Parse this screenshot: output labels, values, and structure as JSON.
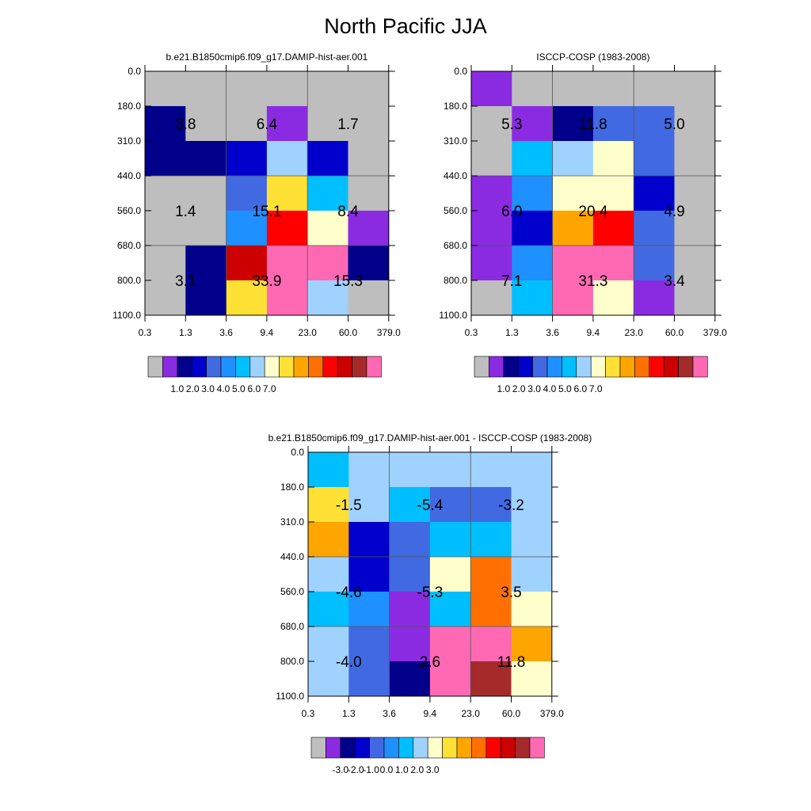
{
  "title": "North Pacific JJA",
  "chart_data": [
    {
      "type": "heatmap",
      "title": "b.e21.B1850cmip6.f09_g17.DAMIP-hist-aer.001",
      "x_tick_labels": [
        "0.3",
        "1.3",
        "3.6",
        "9.4",
        "23.0",
        "60.0",
        "379.0"
      ],
      "y_tick_labels": [
        "0.0",
        "180.0",
        "310.0",
        "440.0",
        "560.0",
        "680.0",
        "800.0",
        "1100.0"
      ],
      "cells_color_index": [
        [
          0,
          0,
          0,
          0,
          0,
          0
        ],
        [
          2,
          0,
          0,
          1,
          0,
          0
        ],
        [
          2,
          2,
          3,
          7,
          3,
          0
        ],
        [
          0,
          0,
          4,
          9,
          6,
          0
        ],
        [
          0,
          0,
          5,
          12,
          8,
          1
        ],
        [
          0,
          2,
          15,
          17,
          17,
          2
        ],
        [
          0,
          2,
          9,
          17,
          7,
          0
        ]
      ],
      "block_values": [
        [
          "3.8",
          "6.4",
          "1.7"
        ],
        [
          "1.4",
          "15.1",
          "8.4"
        ],
        [
          "3.1",
          "33.9",
          "15.3"
        ]
      ],
      "colorbar_labels": [
        "1.0",
        "2.0",
        "3.0",
        "4.0",
        "5.0",
        "6.0",
        "7.0"
      ]
    },
    {
      "type": "heatmap",
      "title": "ISCCP-COSP (1983-2008)",
      "x_tick_labels": [
        "0.3",
        "1.3",
        "3.6",
        "9.4",
        "23.0",
        "60.0",
        "379.0"
      ],
      "y_tick_labels": [
        "0.0",
        "180.0",
        "310.0",
        "440.0",
        "560.0",
        "680.0",
        "800.0",
        "1100.0"
      ],
      "cells_color_index": [
        [
          1,
          0,
          0,
          0,
          0,
          0
        ],
        [
          0,
          1,
          2,
          4,
          4,
          0
        ],
        [
          0,
          6,
          7,
          8,
          4,
          0
        ],
        [
          1,
          5,
          8,
          8,
          3,
          0
        ],
        [
          1,
          3,
          10,
          12,
          4,
          0
        ],
        [
          1,
          5,
          17,
          17,
          4,
          0
        ],
        [
          0,
          6,
          17,
          8,
          1,
          0
        ]
      ],
      "block_values": [
        [
          "5.3",
          "11.8",
          "5.0"
        ],
        [
          "6.0",
          "20.4",
          "4.9"
        ],
        [
          "7.1",
          "31.3",
          "3.4"
        ]
      ],
      "colorbar_labels": [
        "1.0",
        "2.0",
        "3.0",
        "4.0",
        "5.0",
        "6.0",
        "7.0"
      ]
    },
    {
      "type": "heatmap",
      "title": "b.e21.B1850cmip6.f09_g17.DAMIP-hist-aer.001 - ISCCP-COSP (1983-2008)",
      "x_tick_labels": [
        "0.3",
        "1.3",
        "3.6",
        "9.4",
        "23.0",
        "60.0",
        "379.0"
      ],
      "y_tick_labels": [
        "0.0",
        "180.0",
        "310.0",
        "440.0",
        "560.0",
        "680.0",
        "800.0",
        "1100.0"
      ],
      "cells_color_index": [
        [
          6,
          7,
          7,
          7,
          7,
          7
        ],
        [
          9,
          7,
          6,
          4,
          4,
          7
        ],
        [
          10,
          3,
          4,
          6,
          6,
          7
        ],
        [
          7,
          3,
          4,
          8,
          11,
          7
        ],
        [
          6,
          5,
          1,
          6,
          11,
          8
        ],
        [
          7,
          4,
          1,
          17,
          17,
          10
        ],
        [
          7,
          4,
          2,
          17,
          16,
          8
        ]
      ],
      "block_values": [
        [
          "-1.5",
          "-5.4",
          "-3.2"
        ],
        [
          "-4.6",
          "-5.3",
          "3.5"
        ],
        [
          "-4.0",
          "2.6",
          "11.8"
        ]
      ],
      "colorbar_labels": [
        "-3.0",
        "-2.0",
        "-1.0",
        "0.0",
        "1.0",
        "2.0",
        "3.0"
      ]
    }
  ],
  "colors": {
    "palette": [
      "#bebebe",
      "#8a2be2",
      "#00008b",
      "#0000cd",
      "#4169e1",
      "#1e90ff",
      "#00bfff",
      "#a0d2ff",
      "#ffffcc",
      "#ffe135",
      "#ffa500",
      "#ff7000",
      "#ff0000",
      "#cd0000",
      "#a52a2a",
      "#ff69b4"
    ],
    "palette_index_map": {
      "0": 0,
      "1": 1,
      "2": 2,
      "3": 3,
      "4": 4,
      "5": 5,
      "6": 6,
      "7": 7,
      "8": 8,
      "9": 9,
      "10": 10,
      "11": 11,
      "12": 12,
      "13": 13,
      "14": 14,
      "15": 13,
      "16": 14,
      "17": 15
    }
  }
}
